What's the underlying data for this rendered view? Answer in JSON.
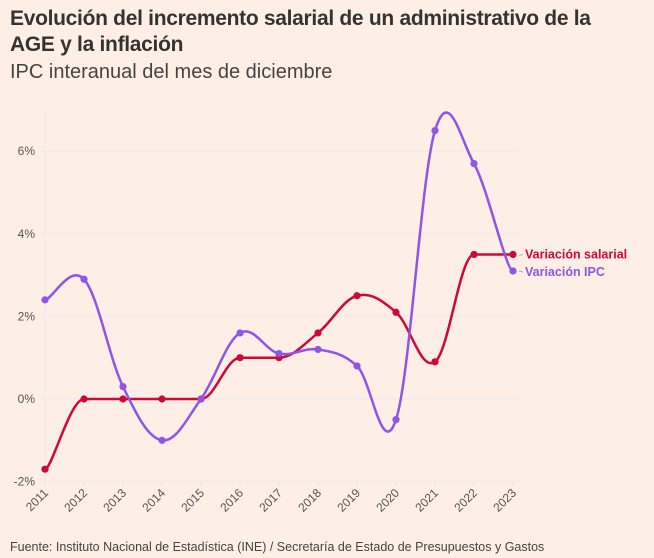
{
  "header": {
    "title": "Evolución del incremento salarial de un administrativo de la AGE y la inflación",
    "subtitle": "IPC interanual del mes de diciembre"
  },
  "footer": {
    "source": "Fuente: Instituto Nacional de Estadística (INE) / Secretaría de Estado de Presupuestos y Gastos"
  },
  "chart_data": {
    "type": "line",
    "title": "Evolución del incremento salarial de un administrativo de la AGE y la inflación",
    "subtitle": "IPC interanual del mes de diciembre",
    "xlabel": "",
    "ylabel": "",
    "x": [
      "2011",
      "2012",
      "2013",
      "2014",
      "2015",
      "2016",
      "2017",
      "2018",
      "2019",
      "2020",
      "2021",
      "2022",
      "2023"
    ],
    "ylim": [
      -2,
      7
    ],
    "yticks": [
      -2,
      0,
      2,
      4,
      6
    ],
    "ytick_labels": [
      "-2%",
      "0%",
      "2%",
      "4%",
      "6%"
    ],
    "grid": true,
    "legend": "inline-right",
    "series": [
      {
        "name": "Variación salarial",
        "color": "#cc0a35",
        "values": [
          -1.7,
          0,
          0,
          0,
          0,
          1.0,
          1.0,
          1.6,
          2.5,
          2.1,
          0.9,
          3.5,
          3.5
        ]
      },
      {
        "name": "Variación IPC",
        "color": "#8e55e6",
        "values": [
          2.4,
          2.9,
          0.3,
          -1.0,
          0.0,
          1.6,
          1.1,
          1.2,
          0.8,
          -0.5,
          6.5,
          5.7,
          3.1
        ]
      }
    ]
  }
}
